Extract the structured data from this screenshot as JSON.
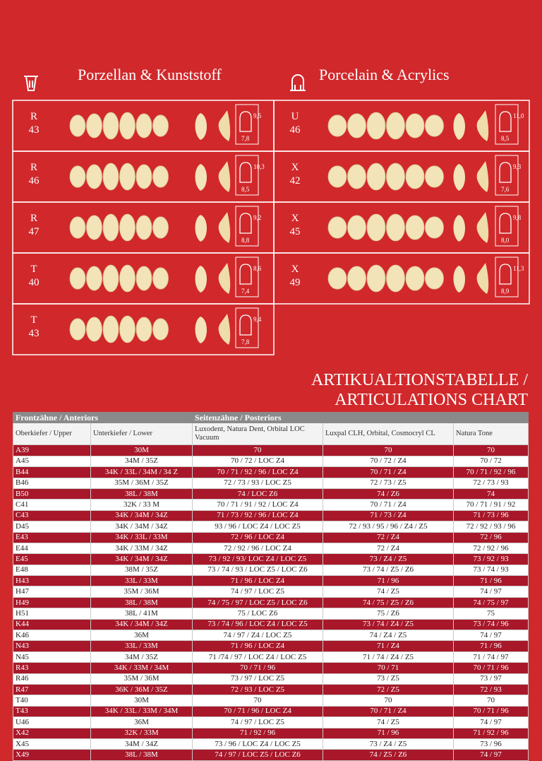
{
  "header": {
    "left_title": "Porzellan & Kunststoff",
    "right_title": "Porcelain & Acrylics"
  },
  "moulds_left": [
    {
      "series": "R",
      "number": "43",
      "height": "9,5",
      "width": "7,8"
    },
    {
      "series": "R",
      "number": "46",
      "height": "10,3",
      "width": "8,5"
    },
    {
      "series": "R",
      "number": "47",
      "height": "9,2",
      "width": "8,8"
    },
    {
      "series": "T",
      "number": "40",
      "height": "8,6",
      "width": "7,4"
    },
    {
      "series": "T",
      "number": "43",
      "height": "9,4",
      "width": "7,8"
    }
  ],
  "moulds_right": [
    {
      "series": "U",
      "number": "46",
      "height": "11,0",
      "width": "8,5"
    },
    {
      "series": "X",
      "number": "42",
      "height": "9,3",
      "width": "7,6"
    },
    {
      "series": "X",
      "number": "45",
      "height": "9,8",
      "width": "8,0"
    },
    {
      "series": "X",
      "number": "49",
      "height": "11,3",
      "width": "8,9"
    }
  ],
  "chart_title": [
    "ARTIKUALTIONSTABELLE /",
    "ARTICULATIONS CHART"
  ],
  "table": {
    "groups": [
      "Frontzähne / Anteriors",
      "Seitenzähne / Posteriors"
    ],
    "columns": [
      "Oberkiefer / Upper",
      "Unterkiefer / Lower",
      "Luxodent, Natura Dent, Orbital LOC Vacuum",
      "Luxpal CLH, Orbital, Cosmocryl CL",
      "Natura Tone"
    ],
    "rows": [
      [
        "A39",
        "30M",
        "70",
        "70",
        "70"
      ],
      [
        "A45",
        "34M / 35Z",
        "70 / 72 / LOC Z4",
        "70 / 72 / Z4",
        "70 / 72"
      ],
      [
        "B44",
        "34K / 33L / 34M / 34 Z",
        "70 / 71 / 92 / 96 / LOC Z4",
        "70 / 71 / Z4",
        "70 / 71 / 92 / 96"
      ],
      [
        "B46",
        "35M / 36M / 35Z",
        "72 / 73 / 93 / LOC Z5",
        "72 / 73 / Z5",
        "72 / 73 / 93"
      ],
      [
        "B50",
        "38L / 38M",
        "74 / LOC Z6",
        "74 / Z6",
        "74"
      ],
      [
        "C41",
        "32K / 33 M",
        "70 / 71 / 91 / 92 / LOC Z4",
        "70 / 71 / Z4",
        "70 / 71 / 91 / 92"
      ],
      [
        "C43",
        "34K / 34M / 34Z",
        "71 / 73 / 92 / 96 / LOC Z4",
        "71 / 73 / Z4",
        "71 / 73 / 96"
      ],
      [
        "D45",
        "34K / 34M / 34Z",
        "93 / 96 / LOC Z4 / LOC Z5",
        "72 / 93 / 95 / 96 / Z4 / Z5",
        "72 / 92 / 93 / 96"
      ],
      [
        "E43",
        "34K / 33L / 33M",
        "72 / 96 / LOC Z4",
        "72 / Z4",
        "72 / 96"
      ],
      [
        "E44",
        "34K / 33M / 34Z",
        "72 / 92 / 96 / LOC Z4",
        "72 / Z4",
        "72 / 92 / 96"
      ],
      [
        "E45",
        "34K / 34M / 34Z",
        "73 / 92 / 93/ LOC Z4 / LOC Z5",
        "73 / Z4 / Z5",
        "73 / 92 / 93"
      ],
      [
        "E48",
        "38M / 35Z",
        "73 / 74 / 93 / LOC Z5 / LOC Z6",
        "73 / 74 / Z5 / Z6",
        "73 / 74 / 93"
      ],
      [
        "H43",
        "33L / 33M",
        "71 / 96 / LOC Z4",
        "71 / 96",
        "71 / 96"
      ],
      [
        "H47",
        "35M / 36M",
        "74 / 97 / LOC Z5",
        "74 / Z5",
        "74 / 97"
      ],
      [
        "H49",
        "38L / 38M",
        "74 / 75 / 97 / LOC Z5 / LOC Z6",
        "74 / 75 / Z5 / Z6",
        "74 / 75 / 97"
      ],
      [
        "H51",
        "38L / 41M",
        "75 / LOC Z6",
        "75 / Z6",
        "75"
      ],
      [
        "K44",
        "34K / 34M / 34Z",
        "73 / 74 / 96 / LOC Z4 / LOC Z5",
        "73 / 74 / Z4 / Z5",
        "73 / 74 / 96"
      ],
      [
        "K46",
        "36M",
        "74 / 97 / Z4 / LOC Z5",
        "74 / Z4 / Z5",
        "74 / 97"
      ],
      [
        "N43",
        "33L / 33M",
        "71 / 96 / LOC Z4",
        "71 / Z4",
        "71 / 96"
      ],
      [
        "N45",
        "34M / 35Z",
        "71 /74 / 97 / LOC Z4 / LOC Z5",
        "71 / 74 / Z4 / Z5",
        "71 / 74 / 97"
      ],
      [
        "R43",
        "34K / 33M / 34M",
        "70 / 71 / 96",
        "70 / 71",
        "70 / 71 / 96"
      ],
      [
        "R46",
        "35M / 36M",
        "73 / 97 / LOC Z5",
        "73 / Z5",
        "73 / 97"
      ],
      [
        "R47",
        "36K / 36M / 35Z",
        "72 / 93 / LOC Z5",
        "72 / Z5",
        "72 / 93"
      ],
      [
        "T40",
        "30M",
        "70",
        "70",
        "70"
      ],
      [
        "T43",
        "34K / 33L / 33M / 34M",
        "70 / 71 / 96 / LOC Z4",
        "70 / 71 / Z4",
        "70 / 71 / 96"
      ],
      [
        "U46",
        "36M",
        "74 / 97 / LOC Z5",
        "74 / Z5",
        "74 / 97"
      ],
      [
        "X42",
        "32K / 33M",
        "71 / 92 / 96",
        "71 / 96",
        "71 / 92 / 96"
      ],
      [
        "X45",
        "34M / 34Z",
        "73 / 96 / LOC Z4 / LOC Z5",
        "73 / Z4 / Z5",
        "73 / 96"
      ],
      [
        "X49",
        "38L / 38M",
        "74 / 97 / LOC Z5 / LOC Z6",
        "74 / Z5 / Z6",
        "74 / 97"
      ]
    ]
  }
}
